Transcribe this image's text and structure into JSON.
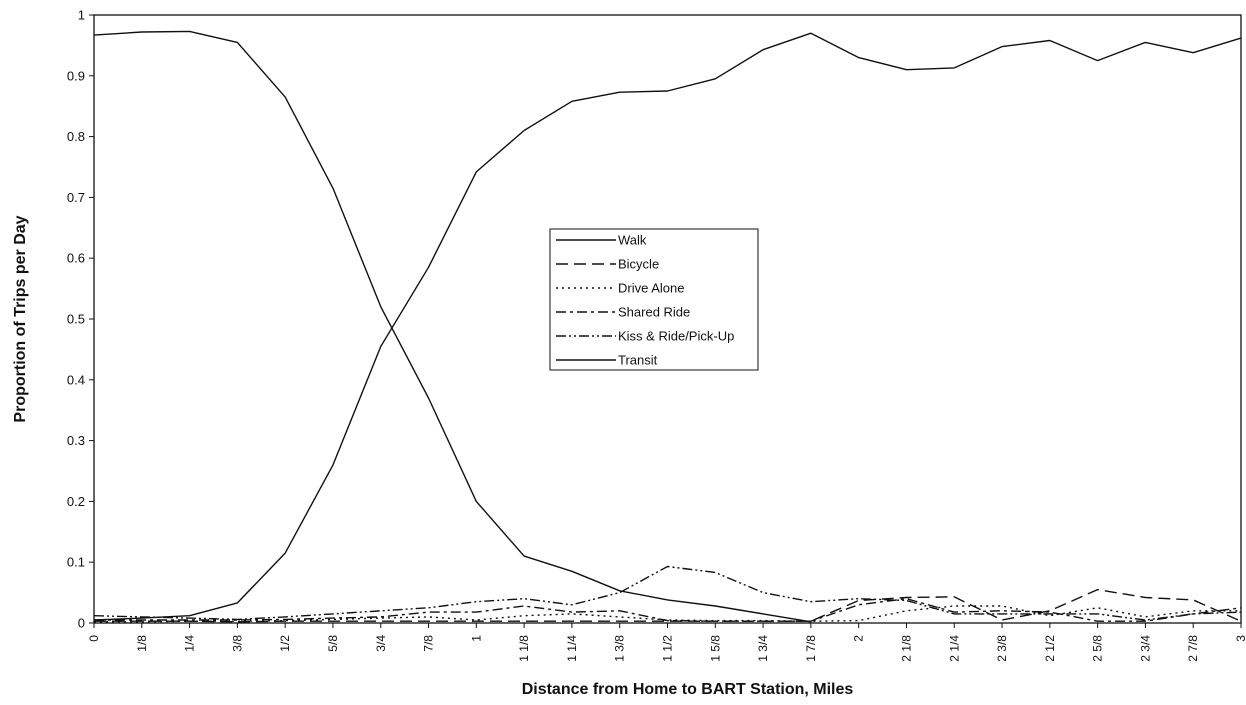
{
  "chart_data": {
    "type": "line",
    "title": "",
    "xlabel": "Distance from Home to BART Station, Miles",
    "ylabel": "Proportion of Trips per Day",
    "ylim": [
      0,
      1
    ],
    "y_ticks": [
      "0",
      "0.1",
      "0.2",
      "0.3",
      "0.4",
      "0.5",
      "0.6",
      "0.7",
      "0.8",
      "0.9",
      "1"
    ],
    "x_ticks": [
      "0",
      "1/8",
      "1/4",
      "3/8",
      "1/2",
      "5/8",
      "3/4",
      "7/8",
      "1",
      "1 1/8",
      "1 1/4",
      "1 3/8",
      "1 1/2",
      "1 5/8",
      "1 3/4",
      "1 7/8",
      "2",
      "2 1/8",
      "2 1/4",
      "2 3/8",
      "2 1/2",
      "2 5/8",
      "2 3/4",
      "2 7/8",
      "3"
    ],
    "x": [
      0,
      0.125,
      0.25,
      0.375,
      0.5,
      0.625,
      0.75,
      0.875,
      1,
      1.125,
      1.25,
      1.375,
      1.5,
      1.625,
      1.75,
      1.875,
      2,
      2.125,
      2.25,
      2.375,
      2.5,
      2.625,
      2.75,
      2.875,
      3
    ],
    "grid": false,
    "legend_position": "center",
    "series": [
      {
        "name": "Walk",
        "dash": "solid",
        "values": [
          0.967,
          0.972,
          0.973,
          0.955,
          0.865,
          0.715,
          0.52,
          0.37,
          0.2,
          0.11,
          0.085,
          0.053,
          0.038,
          0.028,
          0.015,
          0.002,
          null,
          null,
          null,
          null,
          null,
          null,
          null,
          null,
          null
        ]
      },
      {
        "name": "Bicycle",
        "dash": "long-dash",
        "values": [
          0.003,
          0.003,
          0.003,
          0.002,
          0.003,
          0.003,
          0.003,
          0.003,
          0.003,
          0.003,
          0.003,
          0.003,
          0.003,
          0.003,
          0.003,
          0.003,
          0.037,
          0.042,
          0.043,
          0.005,
          0.02,
          0.055,
          0.042,
          0.038,
          0.003
        ]
      },
      {
        "name": "Drive Alone",
        "dash": "dotted",
        "values": [
          0.002,
          0.002,
          0.003,
          0.003,
          0.004,
          0.006,
          0.008,
          0.01,
          0.005,
          0.012,
          0.015,
          0.01,
          0.005,
          0.004,
          0.004,
          0.003,
          0.004,
          0.02,
          0.028,
          0.028,
          0.012,
          0.025,
          0.01,
          0.02,
          0.02
        ]
      },
      {
        "name": "Shared Ride",
        "dash": "dash-dot",
        "values": [
          0.005,
          0.005,
          0.005,
          0.005,
          0.006,
          0.008,
          0.01,
          0.018,
          0.018,
          0.028,
          0.018,
          0.02,
          0.004,
          0.003,
          0.003,
          0.003,
          0.03,
          0.04,
          0.018,
          0.02,
          0.018,
          0.003,
          0.003,
          0.015,
          0.025
        ]
      },
      {
        "name": "Kiss & Ride/Pick-Up",
        "dash": "dash-dot-dot",
        "values": [
          0.012,
          0.01,
          0.008,
          0.006,
          0.01,
          0.015,
          0.02,
          0.025,
          0.035,
          0.04,
          0.03,
          0.05,
          0.093,
          0.083,
          0.05,
          0.035,
          0.04,
          0.037,
          0.015,
          0.015,
          0.015,
          0.015,
          0.005,
          0.015,
          0.018
        ]
      },
      {
        "name": "Transit",
        "dash": "solid",
        "values": [
          0.005,
          0.008,
          0.012,
          0.033,
          0.115,
          0.26,
          0.455,
          0.585,
          0.742,
          0.81,
          0.858,
          0.873,
          0.875,
          0.895,
          0.943,
          0.97,
          0.93,
          0.91,
          0.913,
          0.948,
          0.958,
          0.925,
          0.955,
          0.938,
          0.962
        ]
      }
    ]
  }
}
